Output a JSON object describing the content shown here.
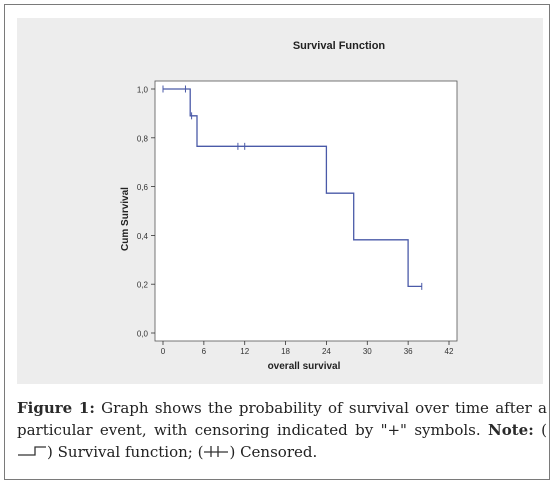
{
  "chart_data": {
    "type": "line",
    "title": "Survival Function",
    "xlabel": "overall survival",
    "ylabel": "Cum Survival",
    "xlim": [
      0,
      42
    ],
    "ylim": [
      0,
      1.0
    ],
    "x_ticks": [
      0,
      6,
      12,
      18,
      24,
      30,
      36,
      42
    ],
    "x_tick_labels": [
      "0",
      "6",
      "12",
      "18",
      "24",
      "30",
      "36",
      "42"
    ],
    "y_ticks": [
      0.0,
      0.2,
      0.4,
      0.6,
      0.8,
      1.0
    ],
    "y_tick_labels": [
      "0,0",
      "0,2",
      "0,4",
      "0,6",
      "0,8",
      "1,0"
    ],
    "grid": false,
    "series": [
      {
        "steps": [
          {
            "x": 0,
            "y": 1.0
          },
          {
            "x": 4,
            "y": 0.89
          },
          {
            "x": 5,
            "y": 0.765
          },
          {
            "x": 24,
            "y": 0.573
          },
          {
            "x": 28,
            "y": 0.382
          },
          {
            "x": 36,
            "y": 0.191
          },
          {
            "x": 38,
            "y": 0.191
          }
        ],
        "censored": [
          {
            "x": 0,
            "y": 1.0
          },
          {
            "x": 3.3,
            "y": 1.0
          },
          {
            "x": 4.2,
            "y": 0.89
          },
          {
            "x": 11,
            "y": 0.765
          },
          {
            "x": 12,
            "y": 0.765
          },
          {
            "x": 38,
            "y": 0.191
          }
        ]
      }
    ],
    "colors": {
      "line": "#4a5aa8",
      "plot_bg": "#ffffff",
      "panel_bg": "#ededed",
      "axis": "#333333"
    }
  },
  "caption": {
    "label": "Figure 1:",
    "text": " Graph shows the probability of survival over time after a particular event, with censoring indicated by \"+\" symbols. ",
    "note_label": "Note:",
    "survival_text": " Survival function; (",
    "censored_text": ") Censored."
  }
}
